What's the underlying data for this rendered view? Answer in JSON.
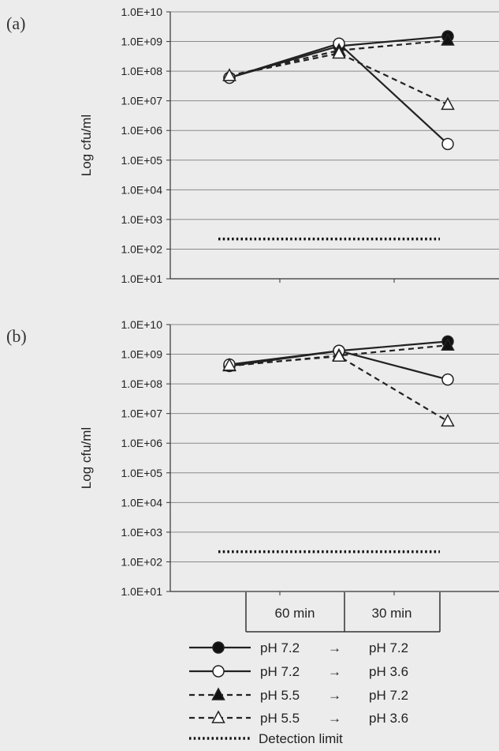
{
  "chart_data": [
    {
      "panel_label": "(a)",
      "type": "line",
      "yscale": "log",
      "ylabel": "Log cfu/ml",
      "ylim": [
        10,
        10000000000
      ],
      "yticks": [
        "1.0E+10",
        "1.0E+09",
        "1.0E+08",
        "1.0E+07",
        "1.0E+06",
        "1.0E+05",
        "1.0E+04",
        "1.0E+03",
        "1.0E+02",
        "1.0E+01"
      ],
      "grid": true,
      "series": [
        {
          "key": "s1",
          "values": [
            60000000,
            700000000,
            1500000000
          ]
        },
        {
          "key": "s2",
          "values": [
            60000000,
            850000000,
            350000
          ]
        },
        {
          "key": "s3",
          "values": [
            70000000,
            500000000,
            1100000000
          ]
        },
        {
          "key": "s4",
          "values": [
            70000000,
            400000000,
            7500000
          ]
        }
      ],
      "detection_limit": 220
    },
    {
      "panel_label": "(b)",
      "type": "line",
      "yscale": "log",
      "ylabel": "Log cfu/ml",
      "ylim": [
        10,
        10000000000
      ],
      "yticks": [
        "1.0E+10",
        "1.0E+09",
        "1.0E+08",
        "1.0E+07",
        "1.0E+06",
        "1.0E+05",
        "1.0E+04",
        "1.0E+03",
        "1.0E+02",
        "1.0E+01"
      ],
      "grid": true,
      "series": [
        {
          "key": "s1",
          "values": [
            400000000,
            1300000000,
            2700000000
          ]
        },
        {
          "key": "s2",
          "values": [
            450000000,
            1300000000,
            140000000
          ]
        },
        {
          "key": "s3",
          "values": [
            400000000,
            900000000,
            2000000000
          ]
        },
        {
          "key": "s4",
          "values": [
            420000000,
            850000000,
            5500000
          ]
        }
      ],
      "detection_limit": 220
    }
  ],
  "time_labels": [
    "60 min",
    "30 min"
  ],
  "legend": [
    {
      "key": "s1",
      "from": "pH 7.2",
      "arrow": "→",
      "to": "pH 7.2"
    },
    {
      "key": "s2",
      "from": "pH 7.2",
      "arrow": "→",
      "to": "pH 3.6"
    },
    {
      "key": "s3",
      "from": "pH 5.5",
      "arrow": "→",
      "to": "pH 7.2"
    },
    {
      "key": "s4",
      "from": "pH 5.5",
      "arrow": "→",
      "to": "pH 3.6"
    },
    {
      "key": "dl",
      "label": "Detection limit"
    }
  ]
}
